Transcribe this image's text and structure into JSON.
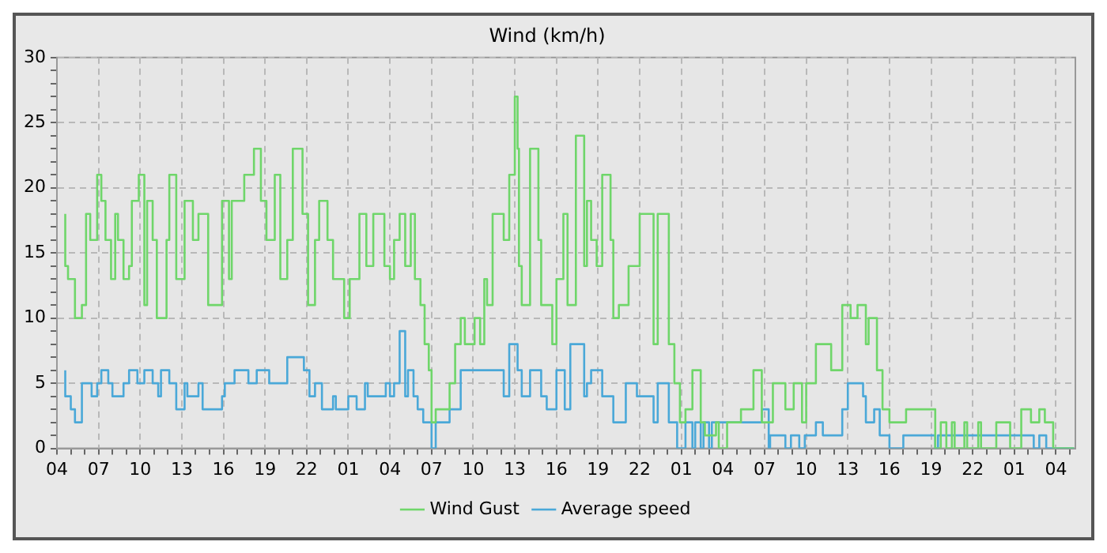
{
  "chart_data": {
    "type": "step",
    "title": "Wind (km/h)",
    "series": [
      {
        "name": "Wind Gust",
        "color": "#6fd66a",
        "x": [
          "--01-01T04:36",
          "--01-01T04:48",
          "--01-01T05:18",
          "--01-01T05:48",
          "--01-01T06:06",
          "--01-01T06:24",
          "--01-01T06:54",
          "--01-01T07:12",
          "--01-01T07:30",
          "--01-01T07:54",
          "--01-01T08:12",
          "--01-01T08:24",
          "--01-01T08:48",
          "--01-01T09:12",
          "--01-01T09:24",
          "--01-01T09:54",
          "--01-01T10:18",
          "--01-01T10:30",
          "--01-01T10:54",
          "--01-01T11:12",
          "--01-01T11:54",
          "--01-01T12:06",
          "--01-01T12:36",
          "--01-01T13:12",
          "--01-01T13:48",
          "--01-01T14:12",
          "--01-01T14:54",
          "--01-01T15:54",
          "--01-01T16:24",
          "--01-01T16:36",
          "--01-01T17:30",
          "--01-01T18:12",
          "--01-01T18:42",
          "--01-01T19:06",
          "--01-01T19:42",
          "--01-01T20:06",
          "--01-01T20:36",
          "--01-01T21:00",
          "--01-01T21:42",
          "--01-01T22:06",
          "--01-01T22:36",
          "--01-01T22:54",
          "--01-01T23:30",
          "--01-01T23:54",
          "--01-02T00:42",
          "--01-02T01:06",
          "--01-02T01:48",
          "--01-02T02:18",
          "--01-02T02:48",
          "--01-02T03:36",
          "--01-02T04:00",
          "--01-02T04:18",
          "--01-02T04:42",
          "--01-02T05:06",
          "--01-02T05:30",
          "--01-02T05:48",
          "--01-02T06:12",
          "--01-02T06:30",
          "--01-02T06:48",
          "--01-02T07:00",
          "--01-02T07:18",
          "--01-02T08:18",
          "--01-02T08:42",
          "--01-02T09:06",
          "--01-02T09:24",
          "--01-02T10:06",
          "--01-02T10:30",
          "--01-02T10:48",
          "--01-02T11:00",
          "--01-02T11:24",
          "--01-02T12:12",
          "--01-02T12:36",
          "--01-02T13:00",
          "--01-02T13:12",
          "--01-02T13:18",
          "--01-02T13:30",
          "--01-02T14:06",
          "--01-02T14:42",
          "--01-02T14:54",
          "--01-02T15:42",
          "--01-02T16:00",
          "--01-02T16:30",
          "--01-02T16:48",
          "--01-02T17:24",
          "--01-02T18:00",
          "--01-02T18:12",
          "--01-02T18:30",
          "--01-02T18:54",
          "--01-02T19:18",
          "--01-02T19:54",
          "--01-02T20:06",
          "--01-02T20:30",
          "--01-02T21:12",
          "--01-02T22:00",
          "--01-02T23:00",
          "--01-02T23:18",
          "--01-03T00:06",
          "--01-03T00:30",
          "--01-03T00:54",
          "--01-03T01:18",
          "--01-03T01:48",
          "--01-03T02:24",
          "--01-03T02:42",
          "--01-03T03:30",
          "--01-03T03:42",
          "--01-03T04:18",
          "--01-03T05:18",
          "--01-03T06:12",
          "--01-03T06:48",
          "--01-03T07:36",
          "--01-03T08:30",
          "--01-03T09:06",
          "--01-03T09:42",
          "--01-03T10:00",
          "--01-03T10:42",
          "--01-03T11:48",
          "--01-03T12:36",
          "--01-03T13:12",
          "--01-03T13:42",
          "--01-03T14:18",
          "--01-03T14:30",
          "--01-03T15:06",
          "--01-03T15:30",
          "--01-03T16:00",
          "--01-03T17:12",
          "--01-03T19:18",
          "--01-03T19:42",
          "--01-03T20:06",
          "--01-03T20:30",
          "--01-03T20:42",
          "--01-03T21:24",
          "--01-03T21:36",
          "--01-03T22:24",
          "--01-03T22:36",
          "--01-03T23:42",
          "--01-04T00:42",
          "--01-04T01:30",
          "--01-04T02:12",
          "--01-04T02:48",
          "--01-04T03:12",
          "--01-04T03:48",
          "--01-04T04:18",
          "--01-04T05:18"
        ],
        "values": [
          18,
          14,
          13,
          10,
          11,
          18,
          16,
          21,
          19,
          16,
          13,
          18,
          16,
          13,
          14,
          19,
          21,
          11,
          19,
          16,
          10,
          16,
          21,
          13,
          19,
          16,
          18,
          11,
          19,
          13,
          19,
          21,
          23,
          19,
          16,
          21,
          13,
          16,
          23,
          18,
          11,
          16,
          19,
          16,
          13,
          10,
          13,
          18,
          14,
          18,
          14,
          13,
          16,
          18,
          14,
          18,
          13,
          11,
          8,
          6,
          2,
          3,
          5,
          8,
          10,
          8,
          10,
          8,
          13,
          11,
          18,
          16,
          21,
          27,
          23,
          14,
          11,
          23,
          16,
          11,
          8,
          13,
          18,
          11,
          24,
          14,
          19,
          16,
          14,
          21,
          16,
          10,
          11,
          14,
          18,
          8,
          18,
          8,
          5,
          2,
          3,
          6,
          2,
          1,
          2,
          0,
          2,
          3,
          6,
          2,
          5,
          3,
          5,
          2,
          5,
          8,
          6,
          11,
          10,
          11,
          8,
          10,
          6,
          3,
          2,
          3,
          0,
          2,
          0,
          2,
          0,
          2,
          0,
          2,
          0,
          2,
          0,
          3,
          2,
          3,
          2,
          0,
          0
        ]
      },
      {
        "name": "Average speed",
        "color": "#4aa8d8",
        "x": [
          "--01-01T04:36",
          "--01-01T05:00",
          "--01-01T05:18",
          "--01-01T05:48",
          "--01-01T06:30",
          "--01-01T06:54",
          "--01-01T07:12",
          "--01-01T07:42",
          "--01-01T08:00",
          "--01-01T08:48",
          "--01-01T09:12",
          "--01-01T09:48",
          "--01-01T10:18",
          "--01-01T10:54",
          "--01-01T11:18",
          "--01-01T11:30",
          "--01-01T12:06",
          "--01-01T12:36",
          "--01-01T13:12",
          "--01-01T13:24",
          "--01-01T14:12",
          "--01-01T14:30",
          "--01-01T15:54",
          "--01-01T16:06",
          "--01-01T16:48",
          "--01-01T17:48",
          "--01-01T18:24",
          "--01-01T19:18",
          "--01-01T20:36",
          "--01-01T21:48",
          "--01-01T22:12",
          "--01-01T22:36",
          "--01-01T23:06",
          "--01-01T23:54",
          "--01-02T00:06",
          "--01-02T01:00",
          "--01-02T01:36",
          "--01-02T02:12",
          "--01-02T02:24",
          "--01-02T03:42",
          "--01-02T04:00",
          "--01-02T04:18",
          "--01-02T04:42",
          "--01-02T05:06",
          "--01-02T05:18",
          "--01-02T05:42",
          "--01-02T06:00",
          "--01-02T06:24",
          "--01-02T07:00",
          "--01-02T07:18",
          "--01-02T08:18",
          "--01-02T09:06",
          "--01-02T12:12",
          "--01-02T12:36",
          "--01-02T13:12",
          "--01-02T13:30",
          "--01-02T14:06",
          "--01-02T14:54",
          "--01-02T15:18",
          "--01-02T16:00",
          "--01-02T16:36",
          "--01-02T17:00",
          "--01-02T18:00",
          "--01-02T18:12",
          "--01-02T18:30",
          "--01-02T19:18",
          "--01-02T20:06",
          "--01-02T21:00",
          "--01-02T21:48",
          "--01-02T23:00",
          "--01-02T23:18",
          "--01-03T00:06",
          "--01-03T00:42",
          "--01-03T01:18",
          "--01-03T01:48",
          "--01-03T02:00",
          "--01-03T02:24",
          "--01-03T02:36",
          "--01-03T03:00",
          "--01-03T03:12",
          "--01-03T06:48",
          "--01-03T07:18",
          "--01-03T07:24",
          "--01-03T08:30",
          "--01-03T08:54",
          "--01-03T09:30",
          "--01-03T09:54",
          "--01-03T10:42",
          "--01-03T11:12",
          "--01-03T12:36",
          "--01-03T13:00",
          "--01-03T14:06",
          "--01-03T14:18",
          "--01-03T14:54",
          "--01-03T15:18",
          "--01-03T16:00",
          "--01-03T17:00",
          "--01-03T19:18",
          "--01-03T19:30",
          "--01-04T02:24",
          "--01-04T02:48",
          "--01-04T03:18",
          "--01-04T03:30",
          "--01-04T05:18"
        ],
        "values": [
          6,
          4,
          3,
          2,
          5,
          4,
          5,
          6,
          5,
          4,
          5,
          6,
          5,
          6,
          5,
          4,
          6,
          5,
          3,
          5,
          4,
          5,
          3,
          4,
          5,
          6,
          5,
          6,
          5,
          7,
          6,
          4,
          5,
          3,
          4,
          3,
          4,
          3,
          5,
          4,
          5,
          4,
          5,
          9,
          4,
          6,
          4,
          3,
          2,
          0,
          2,
          3,
          6,
          4,
          8,
          6,
          4,
          6,
          4,
          3,
          6,
          3,
          8,
          4,
          5,
          6,
          4,
          2,
          5,
          4,
          2,
          5,
          2,
          0,
          2,
          0,
          2,
          0,
          2,
          0,
          2,
          3,
          0,
          1,
          0,
          1,
          0,
          1,
          2,
          1,
          3,
          5,
          4,
          2,
          3,
          1,
          0,
          1,
          0,
          1,
          0,
          1,
          0,
          0
        ]
      }
    ],
    "xlim": [
      "--01-01T04:00",
      "--01-04T05:24"
    ],
    "xticks": [
      {
        "value": "--01-01T04:00",
        "label": "04"
      },
      {
        "value": "--01-01T05:00",
        "label": null
      },
      {
        "value": "--01-01T06:00",
        "label": null
      },
      {
        "value": "--01-01T07:00",
        "label": "07"
      },
      {
        "value": "--01-01T08:00",
        "label": null
      },
      {
        "value": "--01-01T09:00",
        "label": null
      },
      {
        "value": "--01-01T10:00",
        "label": "10"
      },
      {
        "value": "--01-01T11:00",
        "label": null
      },
      {
        "value": "--01-01T12:00",
        "label": null
      },
      {
        "value": "--01-01T13:00",
        "label": "13"
      },
      {
        "value": "--01-01T14:00",
        "label": null
      },
      {
        "value": "--01-01T15:00",
        "label": null
      },
      {
        "value": "--01-01T16:00",
        "label": "16"
      },
      {
        "value": "--01-01T17:00",
        "label": null
      },
      {
        "value": "--01-01T18:00",
        "label": null
      },
      {
        "value": "--01-01T19:00",
        "label": "19"
      },
      {
        "value": "--01-01T20:00",
        "label": null
      },
      {
        "value": "--01-01T21:00",
        "label": null
      },
      {
        "value": "--01-01T22:00",
        "label": "22"
      },
      {
        "value": "--01-01T23:00",
        "label": null
      },
      {
        "value": "--01-02T00:00",
        "label": null
      },
      {
        "value": "--01-02T01:00",
        "label": "01"
      },
      {
        "value": "--01-02T02:00",
        "label": null
      },
      {
        "value": "--01-02T03:00",
        "label": null
      },
      {
        "value": "--01-02T04:00",
        "label": "04"
      },
      {
        "value": "--01-02T05:00",
        "label": null
      },
      {
        "value": "--01-02T06:00",
        "label": null
      },
      {
        "value": "--01-02T07:00",
        "label": "07"
      },
      {
        "value": "--01-02T08:00",
        "label": null
      },
      {
        "value": "--01-02T09:00",
        "label": null
      },
      {
        "value": "--01-02T10:00",
        "label": "10"
      },
      {
        "value": "--01-02T11:00",
        "label": null
      },
      {
        "value": "--01-02T12:00",
        "label": null
      },
      {
        "value": "--01-02T13:00",
        "label": "13"
      },
      {
        "value": "--01-02T14:00",
        "label": null
      },
      {
        "value": "--01-02T15:00",
        "label": null
      },
      {
        "value": "--01-02T16:00",
        "label": "16"
      },
      {
        "value": "--01-02T17:00",
        "label": null
      },
      {
        "value": "--01-02T18:00",
        "label": null
      },
      {
        "value": "--01-02T19:00",
        "label": "19"
      },
      {
        "value": "--01-02T20:00",
        "label": null
      },
      {
        "value": "--01-02T21:00",
        "label": null
      },
      {
        "value": "--01-02T22:00",
        "label": "22"
      },
      {
        "value": "--01-02T23:00",
        "label": null
      },
      {
        "value": "--01-03T00:00",
        "label": null
      },
      {
        "value": "--01-03T01:00",
        "label": "01"
      },
      {
        "value": "--01-03T02:00",
        "label": null
      },
      {
        "value": "--01-03T03:00",
        "label": null
      },
      {
        "value": "--01-03T04:00",
        "label": "04"
      },
      {
        "value": "--01-03T05:00",
        "label": null
      },
      {
        "value": "--01-03T06:00",
        "label": null
      },
      {
        "value": "--01-03T07:00",
        "label": "07"
      },
      {
        "value": "--01-03T08:00",
        "label": null
      },
      {
        "value": "--01-03T09:00",
        "label": null
      },
      {
        "value": "--01-03T10:00",
        "label": "10"
      },
      {
        "value": "--01-03T11:00",
        "label": null
      },
      {
        "value": "--01-03T12:00",
        "label": null
      },
      {
        "value": "--01-03T13:00",
        "label": "13"
      },
      {
        "value": "--01-03T14:00",
        "label": null
      },
      {
        "value": "--01-03T15:00",
        "label": null
      },
      {
        "value": "--01-03T16:00",
        "label": "16"
      },
      {
        "value": "--01-03T17:00",
        "label": null
      },
      {
        "value": "--01-03T18:00",
        "label": null
      },
      {
        "value": "--01-03T19:00",
        "label": "19"
      },
      {
        "value": "--01-03T20:00",
        "label": null
      },
      {
        "value": "--01-03T21:00",
        "label": null
      },
      {
        "value": "--01-03T22:00",
        "label": "22"
      },
      {
        "value": "--01-03T23:00",
        "label": null
      },
      {
        "value": "--01-04T00:00",
        "label": null
      },
      {
        "value": "--01-04T01:00",
        "label": "01"
      },
      {
        "value": "--01-04T02:00",
        "label": null
      },
      {
        "value": "--01-04T03:00",
        "label": null
      },
      {
        "value": "--01-04T04:00",
        "label": "04"
      },
      {
        "value": "--01-04T05:00",
        "label": null
      }
    ],
    "ylim": [
      0,
      30
    ],
    "yticks": [
      0,
      {
        "value": 1,
        "label": null
      },
      {
        "value": 2,
        "label": null
      },
      {
        "value": 3,
        "label": null
      },
      {
        "value": 4,
        "label": null
      },
      5,
      {
        "value": 6,
        "label": null
      },
      {
        "value": 7,
        "label": null
      },
      {
        "value": 8,
        "label": null
      },
      {
        "value": 9,
        "label": null
      },
      10,
      {
        "value": 11,
        "label": null
      },
      {
        "value": 12,
        "label": null
      },
      {
        "value": 13,
        "label": null
      },
      {
        "value": 14,
        "label": null
      },
      15,
      {
        "value": 16,
        "label": null
      },
      {
        "value": 17,
        "label": null
      },
      {
        "value": 18,
        "label": null
      },
      {
        "value": 19,
        "label": null
      },
      20,
      {
        "value": 21,
        "label": null
      },
      {
        "value": 22,
        "label": null
      },
      {
        "value": 23,
        "label": null
      },
      {
        "value": 24,
        "label": null
      },
      25,
      {
        "value": 26,
        "label": null
      },
      {
        "value": 27,
        "label": null
      },
      {
        "value": 28,
        "label": null
      },
      {
        "value": 29,
        "label": null
      },
      30
    ],
    "grid": true,
    "legend": "bottom",
    "marker": "none"
  }
}
